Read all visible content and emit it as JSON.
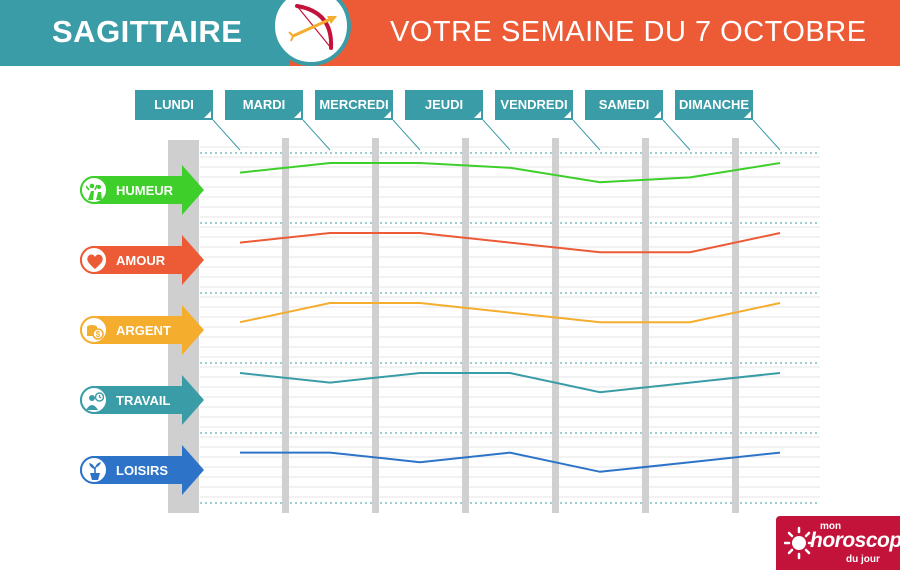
{
  "header": {
    "sign": "SAGITTAIRE",
    "title": "VOTRE SEMAINE DU 7 OCTOBRE",
    "sign_icon": "sagittarius-bow-arrow-icon"
  },
  "days": [
    "LUNDI",
    "MARDI",
    "MERCREDI",
    "JEUDI",
    "VENDREDI",
    "SAMEDI",
    "DIMANCHE"
  ],
  "categories": [
    {
      "label": "HUMEUR",
      "color": "#3ecf2b",
      "icon": "people-icon"
    },
    {
      "label": "AMOUR",
      "color": "#ec5a36",
      "icon": "heart-icon"
    },
    {
      "label": "ARGENT",
      "color": "#f5ad2e",
      "icon": "coins-icon"
    },
    {
      "label": "TRAVAIL",
      "color": "#3a9ca6",
      "icon": "worker-clock-icon"
    },
    {
      "label": "LOISIRS",
      "color": "#2d74c8",
      "icon": "plant-pot-icon"
    }
  ],
  "chart_data": {
    "type": "line",
    "x": [
      "LUNDI",
      "MARDI",
      "MERCREDI",
      "JEUDI",
      "VENDREDI",
      "SAMEDI",
      "DIMANCHE"
    ],
    "series": [
      {
        "name": "HUMEUR",
        "values": [
          4,
          5,
          5,
          4.5,
          3,
          3.5,
          5
        ],
        "color": "#3ecf2b"
      },
      {
        "name": "AMOUR",
        "values": [
          4,
          5,
          5,
          4,
          3,
          3,
          5
        ],
        "color": "#ec5a36"
      },
      {
        "name": "ARGENT",
        "values": [
          3,
          5,
          5,
          4,
          3,
          3,
          5
        ],
        "color": "#f5ad2e"
      },
      {
        "name": "TRAVAIL",
        "values": [
          5,
          4,
          5,
          5,
          3,
          4,
          5
        ],
        "color": "#3a9ca6"
      },
      {
        "name": "LOISIRS",
        "values": [
          4,
          4,
          3,
          4,
          2,
          3,
          4
        ],
        "color": "#2d74c8"
      }
    ],
    "ylim": [
      0,
      5
    ],
    "grid": true
  },
  "branding": {
    "prefix": "mon",
    "name": "horoscope",
    "suffix": "du jour"
  }
}
